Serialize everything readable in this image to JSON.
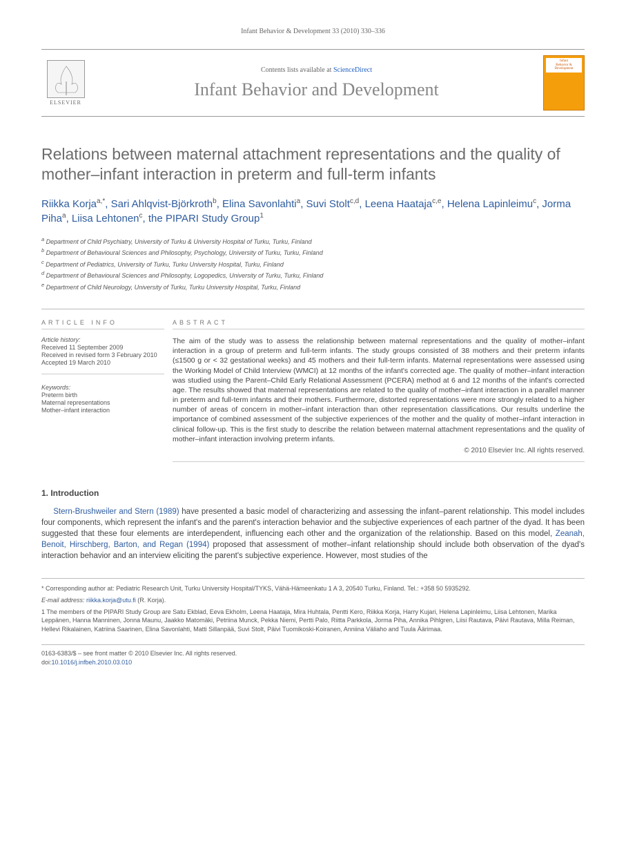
{
  "running_head": "Infant Behavior & Development 33 (2010) 330–336",
  "header": {
    "contents_prefix": "Contents lists available at ",
    "contents_link": "ScienceDirect",
    "journal_title": "Infant Behavior and Development",
    "publisher": "ELSEVIER",
    "thumb_lines": [
      "Infant",
      "Behavior &",
      "Development"
    ]
  },
  "article": {
    "title": "Relations between maternal attachment representations and the quality of mother–infant interaction in preterm and full-term infants",
    "authors_html": "Riikka Korja<sup>a,*</sup>, Sari Ahlqvist-Björkroth<sup>b</sup>, Elina Savonlahti<sup>a</sup>, Suvi Stolt<sup>c,d</sup>, Leena Haataja<sup>c,e</sup>, Helena Lapinleimu<sup>c</sup>, Jorma Piha<sup>a</sup>, Liisa Lehtonen<sup>c</sup>, the PIPARI Study Group<sup>1</sup>",
    "affiliations": [
      "a Department of Child Psychiatry, University of Turku & University Hospital of Turku, Turku, Finland",
      "b Department of Behavioural Sciences and Philosophy, Psychology, University of Turku, Turku, Finland",
      "c Department of Pediatrics, University of Turku, Turku University Hospital, Turku, Finland",
      "d Department of Behavioural Sciences and Philosophy, Logopedics, University of Turku, Turku, Finland",
      "e Department of Child Neurology, University of Turku, Turku University Hospital, Turku, Finland"
    ]
  },
  "info": {
    "heading": "ARTICLE INFO",
    "history_label": "Article history:",
    "history": [
      "Received 11 September 2009",
      "Received in revised form 3 February 2010",
      "Accepted 19 March 2010"
    ],
    "keywords_label": "Keywords:",
    "keywords": [
      "Preterm birth",
      "Maternal representations",
      "Mother–infant interaction"
    ]
  },
  "abstract": {
    "heading": "ABSTRACT",
    "text": "The aim of the study was to assess the relationship between maternal representations and the quality of mother–infant interaction in a group of preterm and full-term infants. The study groups consisted of 38 mothers and their preterm infants (≤1500 g or < 32 gestational weeks) and 45 mothers and their full-term infants. Maternal representations were assessed using the Working Model of Child Interview (WMCI) at 12 months of the infant's corrected age. The quality of mother–infant interaction was studied using the Parent–Child Early Relational Assessment (PCERA) method at 6 and 12 months of the infant's corrected age. The results showed that maternal representations are related to the quality of mother–infant interaction in a parallel manner in preterm and full-term infants and their mothers. Furthermore, distorted representations were more strongly related to a higher number of areas of concern in mother–infant interaction than other representation classifications. Our results underline the importance of combined assessment of the subjective experiences of the mother and the quality of mother–infant interaction in clinical follow-up. This is the first study to describe the relation between maternal attachment representations and the quality of mother–infant interaction involving preterm infants.",
    "copyright": "© 2010 Elsevier Inc. All rights reserved."
  },
  "section1": {
    "heading": "1. Introduction",
    "p1_cite1": "Stern-Brushweiler and Stern (1989)",
    "p1_mid": " have presented a basic model of characterizing and assessing the infant–parent relationship. This model includes four components, which represent the infant's and the parent's interaction behavior and the subjective experiences of each partner of the dyad. It has been suggested that these four elements are interdependent, influencing each other and the organization of the relationship. Based on this model, ",
    "p1_cite2": "Zeanah, Benoit, Hirschberg, Barton, and Regan (1994)",
    "p1_end": " proposed that assessment of mother–infant relationship should include both observation of the dyad's interaction behavior and an interview eliciting the parent's subjective experience. However, most studies of the"
  },
  "footnotes": {
    "corr": "* Corresponding author at: Pediatric Research Unit, Turku University Hospital/TYKS, Vähä-Hämeenkatu 1 A 3, 20540 Turku, Finland. Tel.: +358 50 5935292.",
    "email_label": "E-mail address:",
    "email": "riikka.korja@utu.fi",
    "email_name": "(R. Korja).",
    "group": "1 The members of the PIPARI Study Group are Satu Ekblad, Eeva Ekholm, Leena Haataja, Mira Huhtala, Pentti Kero, Riikka Korja, Harry Kujari, Helena Lapinleimu, Liisa Lehtonen, Marika Leppänen, Hanna Manninen, Jonna Maunu, Jaakko Matomäki, Petriina Munck, Pekka Niemi, Pertti Palo, Riitta Parkkola, Jorma Piha, Annika Pihlgren, Liisi Rautava, Päivi Rautava, Milla Reiman, Hellevi Rikalainen, Katriina Saarinen, Elina Savonlahti, Matti Sillanpää, Suvi Stolt, Päivi Tuomikoski-Koiranen, Anniina Väliaho and Tuula Äärimaa."
  },
  "bottom": {
    "line1": "0163-6383/$ – see front matter © 2010 Elsevier Inc. All rights reserved.",
    "doi_label": "doi:",
    "doi": "10.1016/j.infbeh.2010.03.010"
  },
  "colors": {
    "link": "#2e5c9e",
    "body": "#444444",
    "muted": "#666666",
    "thumb_bg": "#f59e0b"
  }
}
